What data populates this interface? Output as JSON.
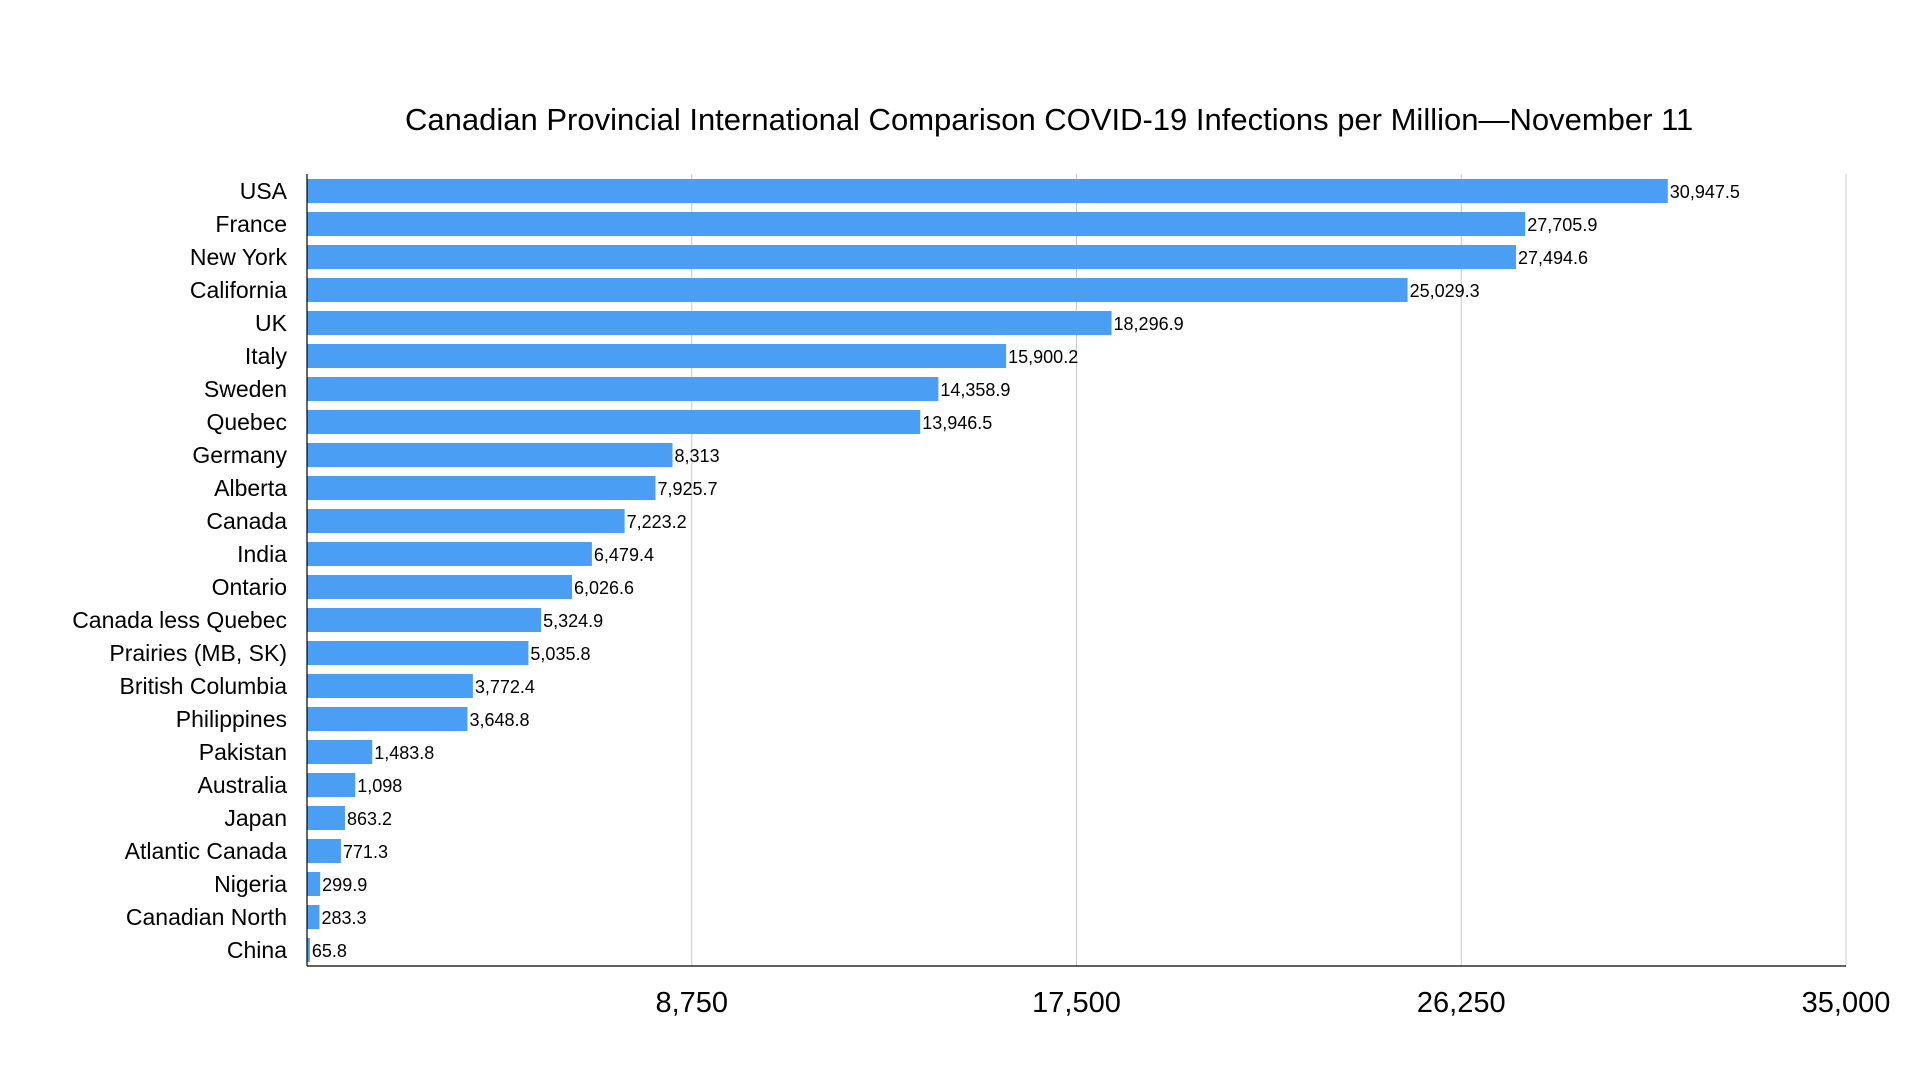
{
  "chart_data": {
    "type": "bar",
    "orientation": "horizontal",
    "title": "Canadian Provincial International Comparison COVID-19 Infections per Million—November 11",
    "xlim": [
      0,
      35000
    ],
    "xticks": [
      "8,750",
      "17,500",
      "26,250",
      "35,000"
    ],
    "xtick_values": [
      8750,
      17500,
      26250,
      35000
    ],
    "grid": "vertical",
    "bar_color": "#4a9ff5",
    "categories": [
      "USA",
      "France",
      "New York",
      "California",
      "UK",
      "Italy",
      "Sweden",
      "Quebec",
      "Germany",
      "Alberta",
      "Canada",
      "India",
      "Ontario",
      "Canada less Quebec",
      "Prairies (MB, SK)",
      "British Columbia",
      "Philippines",
      "Pakistan",
      "Australia",
      "Japan",
      "Atlantic Canada",
      "Nigeria",
      "Canadian North",
      "China"
    ],
    "values": [
      30947.5,
      27705.9,
      27494.6,
      25029.3,
      18296.9,
      15900.2,
      14358.9,
      13946.5,
      8313,
      7925.7,
      7223.2,
      6479.4,
      6026.6,
      5324.9,
      5035.8,
      3772.4,
      3648.8,
      1483.8,
      1098,
      863.2,
      771.3,
      299.9,
      283.3,
      65.8
    ],
    "value_labels": [
      "30,947.5",
      "27,705.9",
      "27,494.6",
      "25,029.3",
      "18,296.9",
      "15,900.2",
      "14,358.9",
      "13,946.5",
      "8,313",
      "7,925.7",
      "7,223.2",
      "6,479.4",
      "6,026.6",
      "5,324.9",
      "5,035.8",
      "3,772.4",
      "3,648.8",
      "1,483.8",
      "1,098",
      "863.2",
      "771.3",
      "299.9",
      "283.3",
      "65.8"
    ]
  }
}
